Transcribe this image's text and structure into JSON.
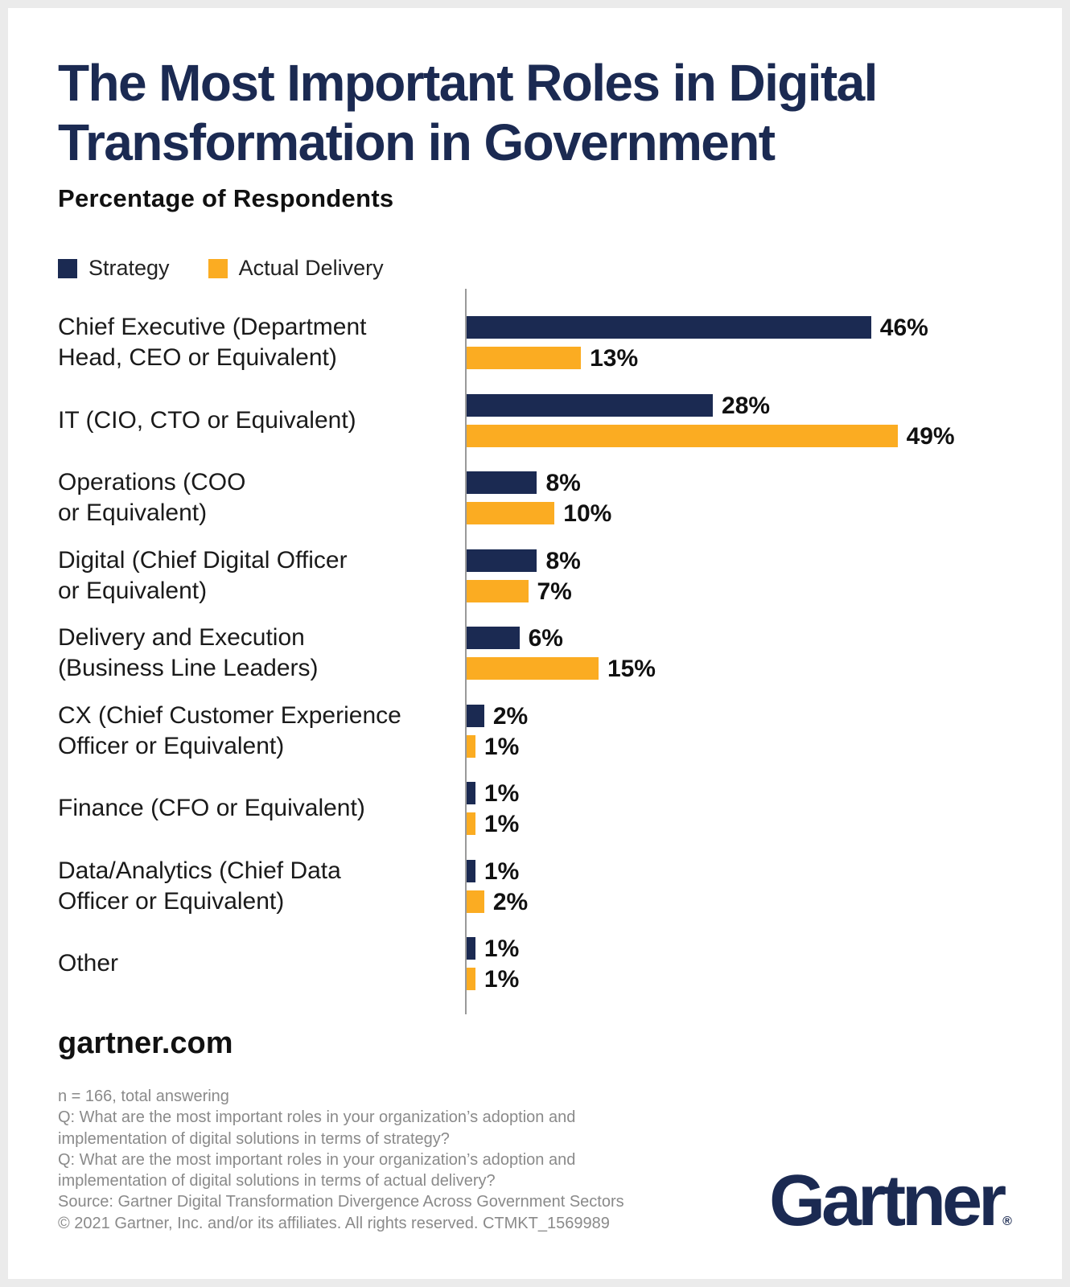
{
  "title_lines": [
    "The Most Important Roles in Digital",
    "Transformation in Government"
  ],
  "subtitle": "Percentage of Respondents",
  "colors": {
    "strategy": "#1b2a52",
    "delivery": "#fbac22",
    "brand": "#1b2a52"
  },
  "chart_data": {
    "type": "bar",
    "orientation": "horizontal",
    "title": "The Most Important Roles in Digital Transformation in Government",
    "subtitle": "Percentage of Respondents",
    "legend": [
      "Strategy",
      "Actual Delivery"
    ],
    "legend_position": "top-left",
    "categories": [
      [
        "Chief Executive (Department",
        "Head, CEO or Equivalent)"
      ],
      [
        "IT (CIO, CTO or Equivalent)"
      ],
      [
        "Operations (COO",
        "or Equivalent)"
      ],
      [
        "Digital (Chief Digital Officer",
        "or Equivalent)"
      ],
      [
        "Delivery and Execution",
        "(Business Line Leaders)"
      ],
      [
        "CX (Chief Customer Experience",
        "Officer or Equivalent)"
      ],
      [
        "Finance (CFO or Equivalent)"
      ],
      [
        "Data/Analytics (Chief Data",
        "Officer or Equivalent)"
      ],
      [
        "Other"
      ]
    ],
    "series": [
      {
        "name": "Strategy",
        "values": [
          46,
          28,
          8,
          8,
          6,
          2,
          1,
          1,
          1
        ]
      },
      {
        "name": "Actual Delivery",
        "values": [
          13,
          49,
          10,
          7,
          15,
          1,
          1,
          2,
          1
        ]
      }
    ],
    "value_suffix": "%",
    "xlim": [
      0,
      55
    ],
    "grid": false
  },
  "footer": {
    "site": "gartner.com",
    "notes": [
      "n = 166, total answering",
      "Q: What are the most important roles in your organization’s adoption and",
      "implementation of digital solutions in terms of strategy?",
      "Q: What are the most important roles in your organization’s adoption and",
      "implementation of digital solutions in terms of actual delivery?",
      "Source: Gartner Digital Transformation Divergence Across Government Sectors",
      "© 2021 Gartner, Inc. and/or its affiliates. All rights reserved. CTMKT_1569989"
    ],
    "logo": "Gartner",
    "logo_mark": "®"
  }
}
